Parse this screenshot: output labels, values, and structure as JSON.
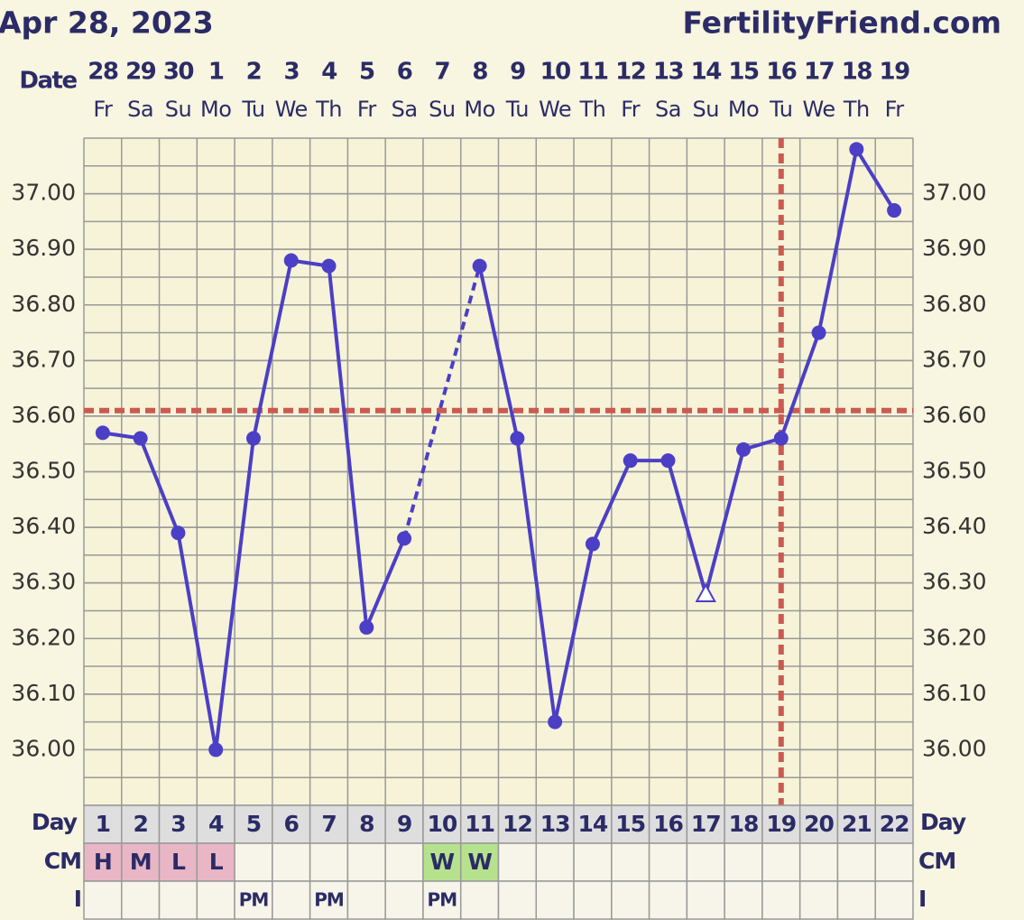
{
  "header": {
    "date": "Apr 28, 2023",
    "site": "FertilityFriend.com"
  },
  "chart_data": {
    "type": "line",
    "date_label": "Date",
    "dates": [
      "28",
      "29",
      "30",
      "1",
      "2",
      "3",
      "4",
      "5",
      "6",
      "7",
      "8",
      "9",
      "10",
      "11",
      "12",
      "13",
      "14",
      "15",
      "16",
      "17",
      "18",
      "19"
    ],
    "weekdays": [
      "Fr",
      "Sa",
      "Su",
      "Mo",
      "Tu",
      "We",
      "Th",
      "Fr",
      "Sa",
      "Su",
      "Mo",
      "Tu",
      "We",
      "Th",
      "Fr",
      "Sa",
      "Su",
      "Mo",
      "Tu",
      "We",
      "Th",
      "Fr"
    ],
    "day_label": "Day",
    "categories": [
      1,
      2,
      3,
      4,
      5,
      6,
      7,
      8,
      9,
      10,
      11,
      12,
      13,
      14,
      15,
      16,
      17,
      18,
      19,
      20,
      21,
      22
    ],
    "values": [
      36.57,
      36.56,
      36.39,
      36.0,
      36.56,
      36.88,
      36.87,
      36.22,
      36.38,
      null,
      36.87,
      36.56,
      36.05,
      36.37,
      36.52,
      36.52,
      36.28,
      36.54,
      36.56,
      36.75,
      37.08,
      36.97
    ],
    "color": "#4b3fc6",
    "open_markers": [
      16
    ],
    "gap_line": "dashed",
    "coverline": 36.61,
    "ovulation_day": 19,
    "marker_line_color": "#cc5a50",
    "ylim": [
      35.9,
      37.1
    ],
    "yticks": [
      {
        "value": 36,
        "label": "36.00"
      },
      {
        "value": 36.1,
        "label": "36.10"
      },
      {
        "value": 36.2,
        "label": "36.20"
      },
      {
        "value": 36.3,
        "label": "36.30"
      },
      {
        "value": 36.4,
        "label": "36.40"
      },
      {
        "value": 36.5,
        "label": "36.50"
      },
      {
        "value": 36.6,
        "label": "36.60"
      },
      {
        "value": 36.7,
        "label": "36.70"
      },
      {
        "value": 36.8,
        "label": "36.80"
      },
      {
        "value": 36.9,
        "label": "36.90"
      },
      {
        "value": 37,
        "label": "37.00"
      }
    ],
    "grid": true,
    "rows": [
      {
        "label": "CM",
        "cells": [
          "H",
          "M",
          "L",
          "L",
          null,
          null,
          null,
          null,
          null,
          "W",
          "W",
          null,
          null,
          null,
          null,
          null,
          null,
          null,
          null,
          null,
          null,
          null
        ]
      },
      {
        "label": "I",
        "cells": [
          null,
          null,
          null,
          null,
          "PM",
          null,
          "PM",
          null,
          null,
          "PM",
          null,
          null,
          null,
          null,
          null,
          null,
          null,
          null,
          null,
          null,
          null,
          null
        ]
      }
    ],
    "cell_colors": {
      "H": "#e9b6c6",
      "M": "#e9b6c6",
      "L": "#e9b6c6",
      "W": "#b6e28e"
    }
  }
}
